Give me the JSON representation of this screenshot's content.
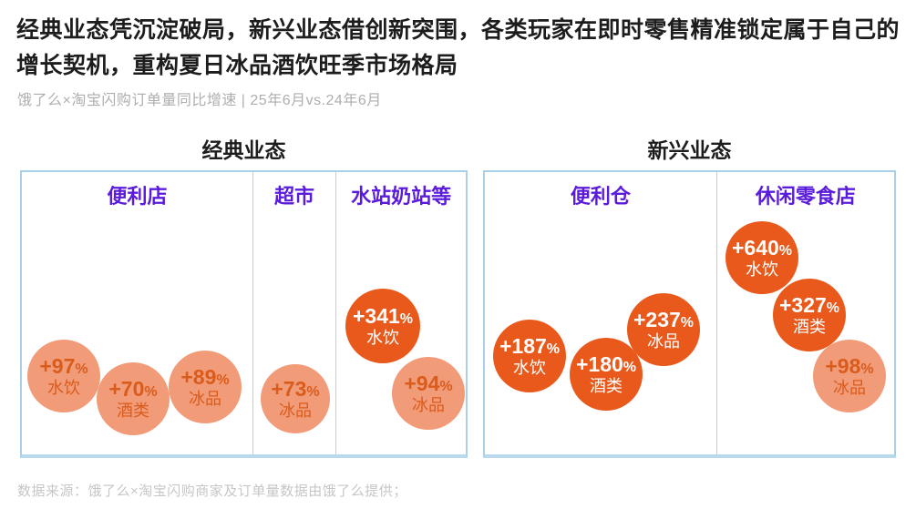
{
  "header": {
    "title": "经典业态凭沉淀破局，新兴业态借创新突围，各类玩家在即时零售精准锁定属于自己的增长契机，重构夏日冰品酒饮旺季市场格局",
    "subtitle": "饿了么×淘宝闪购订单量同比增速 | 25年6月vs.24年6月"
  },
  "footer": {
    "source": "数据来源：饿了么×淘宝闪购商家及订单量数据由饿了么提供；"
  },
  "colors": {
    "bubble_dark": "#e8591b",
    "bubble_light": "#f19b78",
    "bubble_light_text": "#da5c1c",
    "column_header_purple": "#5a1bdb",
    "panel_border_blue": "#a9d0e8",
    "title_text": "#1d1d1d",
    "muted_text": "#aeaeae"
  },
  "chart_data": {
    "type": "bubble",
    "title": "饿了么×淘宝闪购订单量同比增速",
    "comparison": "25年6月vs.24年6月",
    "unit": "%",
    "groups": [
      {
        "title": "经典业态",
        "columns": [
          {
            "label": "便利店",
            "bubbles": [
              {
                "display": "+97%",
                "value": 97,
                "category": "水饮",
                "style": "light"
              },
              {
                "display": "+70%",
                "value": 70,
                "category": "酒类",
                "style": "light"
              },
              {
                "display": "+89%",
                "value": 89,
                "category": "冰品",
                "style": "light"
              }
            ]
          },
          {
            "label": "超市",
            "bubbles": [
              {
                "display": "+73%",
                "value": 73,
                "category": "冰品",
                "style": "light"
              }
            ]
          },
          {
            "label": "水站奶站等",
            "bubbles": [
              {
                "display": "+341%",
                "value": 341,
                "category": "水饮",
                "style": "dark"
              },
              {
                "display": "+94%",
                "value": 94,
                "category": "冰品",
                "style": "light"
              }
            ]
          }
        ]
      },
      {
        "title": "新兴业态",
        "columns": [
          {
            "label": "便利仓",
            "bubbles": [
              {
                "display": "+187%",
                "value": 187,
                "category": "水饮",
                "style": "dark"
              },
              {
                "display": "+180%",
                "value": 180,
                "category": "酒类",
                "style": "dark"
              },
              {
                "display": "+237%",
                "value": 237,
                "category": "冰品",
                "style": "dark"
              }
            ]
          },
          {
            "label": "休闲零食店",
            "bubbles": [
              {
                "display": "+640%",
                "value": 640,
                "category": "水饮",
                "style": "dark"
              },
              {
                "display": "+327%",
                "value": 327,
                "category": "酒类",
                "style": "dark"
              },
              {
                "display": "+98%",
                "value": 98,
                "category": "冰品",
                "style": "light"
              }
            ]
          }
        ]
      }
    ]
  }
}
